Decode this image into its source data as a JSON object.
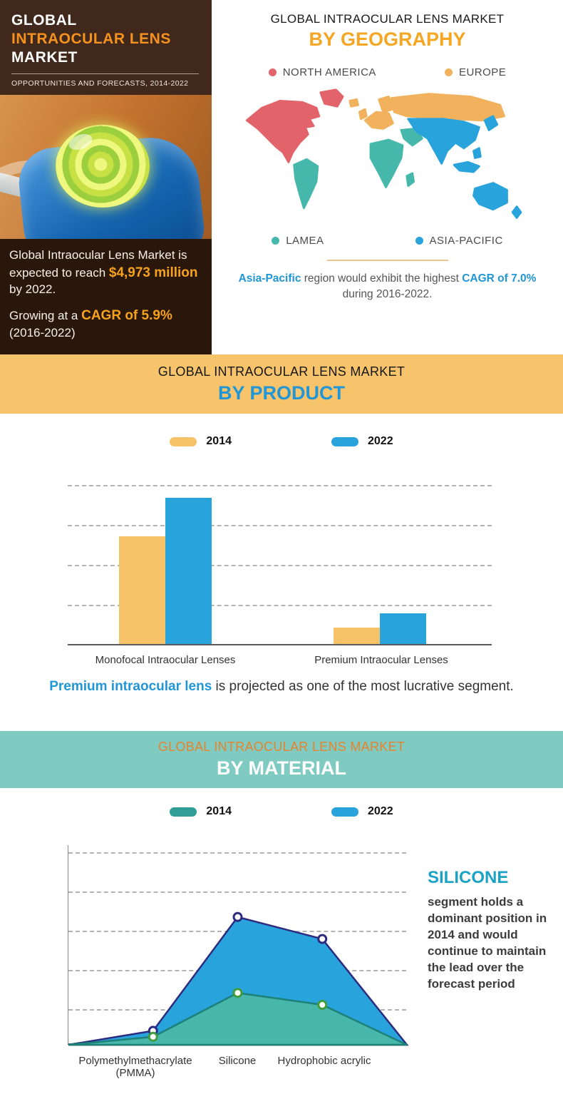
{
  "colors": {
    "orange_accent": "#f6921e",
    "highlight_orange": "#f6a21c",
    "blue_accent": "#2196d6",
    "banner_orange_bg": "#f7c46c",
    "banner_teal_bg": "#7fcbc2",
    "banner_teal_title": "#e8822d",
    "dark_brown_bg": "#40291c",
    "facts_bg": "#2a170b",
    "silicone_callout": "#1ba3c6"
  },
  "header": {
    "title_line1": "GLOBAL",
    "title_line2": "INTRAOCULAR LENS",
    "title_line3": "MARKET",
    "subtitle": "OPPORTUNITIES AND FORECASTS, 2014-2022",
    "fact1_prefix": "Global Intraocular Lens Market is expected to reach ",
    "fact1_highlight": "$4,973 million",
    "fact1_suffix": " by 2022.",
    "fact2_prefix": "Growing at a ",
    "fact2_highlight": "CAGR of 5.9%",
    "fact2_suffix": " (2016-2022)"
  },
  "geography": {
    "title": "GLOBAL INTRAOCULAR LENS MARKET",
    "subtitle": "BY GEOGRAPHY",
    "legend": [
      {
        "label": "NORTH AMERICA",
        "color": "#e2636a"
      },
      {
        "label": "EUROPE",
        "color": "#f2b15c"
      },
      {
        "label": "LAMEA",
        "color": "#45b8ab"
      },
      {
        "label": "ASIA-PACIFIC",
        "color": "#29a3dc"
      }
    ],
    "note_highlight1": "Asia-Pacific",
    "note_mid": " region would exhibit the highest ",
    "note_highlight2": "CAGR of 7.0%",
    "note_suffix": " during 2016-2022."
  },
  "product_section": {
    "banner_title": "GLOBAL INTRAOCULAR LENS MARKET",
    "banner_subtitle": "BY PRODUCT",
    "note_highlight": "Premium intraocular lens",
    "note_suffix": " is projected as one of the most lucrative segment."
  },
  "material_section": {
    "banner_title": "GLOBAL INTRAOCULAR LENS MARKET",
    "banner_subtitle": "BY MATERIAL",
    "callout_title": "SILICONE",
    "callout_body": "segment holds a dominant position in 2014 and would continue to maintain the lead over the forecast period"
  },
  "chart_data": [
    {
      "type": "bar",
      "title": "Global Intraocular Lens Market by Product",
      "categories": [
        "Monofocal Intraocular Lenses",
        "Premium Intraocular Lenses"
      ],
      "series": [
        {
          "name": "2014",
          "color": "#f6c268",
          "values": [
            67,
            10
          ]
        },
        {
          "name": "2022",
          "color": "#29a3dc",
          "values": [
            91,
            19
          ]
        }
      ],
      "ylim": [
        0,
        100
      ],
      "xlabel": "",
      "ylabel": "",
      "grid": "horizontal dashed, no y tick labels",
      "legend_position": "top",
      "units": "relative market size (axis unlabeled)"
    },
    {
      "type": "area",
      "title": "Global Intraocular Lens Market by Material",
      "categories": [
        "Polymethylmethacrylate (PMMA)",
        "Silicone",
        "Hydrophobic acrylic"
      ],
      "series": [
        {
          "name": "2014",
          "color": "#2e9e96",
          "fill_color": "#48b7ab",
          "line_color": "#1d8178",
          "marker_color": "#3f9d3f",
          "values": [
            4,
            26,
            20
          ]
        },
        {
          "name": "2022",
          "color": "#29a3dc",
          "fill_color": "#29a3dc",
          "line_color": "#2d2b7f",
          "marker_color": "#2d2b7f",
          "values": [
            7,
            64,
            53
          ]
        }
      ],
      "ylim": [
        0,
        100
      ],
      "xlabel": "",
      "ylabel": "",
      "grid": "horizontal dashed, no y tick labels",
      "legend_position": "top",
      "units": "relative market size (axis unlabeled); both areas start and end at zero at plot edges"
    }
  ]
}
